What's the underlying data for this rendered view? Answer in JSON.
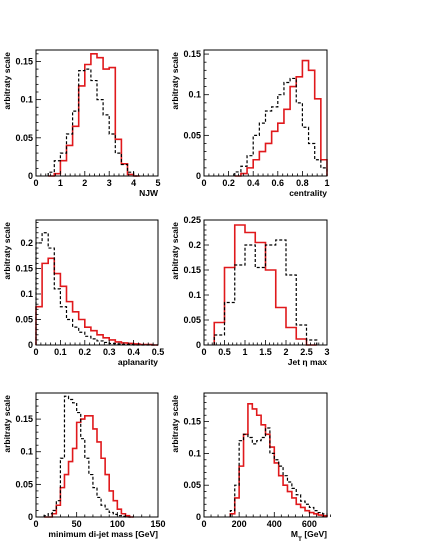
{
  "chart_data": [
    {
      "type": "step",
      "xlabel": "NJW",
      "ylabel": "arbitraty scale",
      "xlim": [
        0,
        5
      ],
      "ylim": [
        0,
        0.165
      ],
      "xticks": [
        0,
        1,
        2,
        3,
        4,
        5
      ],
      "yticks": [
        0,
        0.05,
        0.1,
        0.15
      ],
      "bin_edges": [
        0.5,
        0.75,
        1.0,
        1.25,
        1.5,
        1.75,
        2.0,
        2.25,
        2.5,
        2.75,
        3.0,
        3.25,
        3.5,
        3.75,
        4.0,
        4.25
      ],
      "series": [
        {
          "color": "#e0191c",
          "style": "solid",
          "values": [
            0,
            0.003,
            0.02,
            0.04,
            0.065,
            0.118,
            0.146,
            0.16,
            0.155,
            0.14,
            0.142,
            0.048,
            0.016,
            0.002,
            0
          ]
        },
        {
          "color": "#000000",
          "style": "dashed",
          "values": [
            0.005,
            0.02,
            0.03,
            0.055,
            0.085,
            0.138,
            0.14,
            0.125,
            0.1,
            0.08,
            0.055,
            0.03,
            0.015,
            0.005,
            0
          ]
        }
      ]
    },
    {
      "type": "step",
      "xlabel": "centrality",
      "ylabel": "arbitraty scale",
      "xlim": [
        0,
        1
      ],
      "ylim": [
        0,
        0.155
      ],
      "xticks": [
        0,
        0.2,
        0.4,
        0.6,
        0.8,
        1
      ],
      "yticks": [
        0,
        0.05,
        0.1,
        0.15
      ],
      "bin_edges": [
        0.25,
        0.3,
        0.35,
        0.4,
        0.45,
        0.5,
        0.55,
        0.6,
        0.65,
        0.7,
        0.75,
        0.8,
        0.85,
        0.9,
        0.95,
        1.0
      ],
      "series": [
        {
          "color": "#e0191c",
          "style": "solid",
          "values": [
            0,
            0.003,
            0.01,
            0.02,
            0.03,
            0.04,
            0.055,
            0.065,
            0.082,
            0.11,
            0.122,
            0.142,
            0.13,
            0.095,
            0.02
          ]
        },
        {
          "color": "#000000",
          "style": "dashed",
          "values": [
            0.005,
            0.012,
            0.025,
            0.05,
            0.065,
            0.08,
            0.085,
            0.1,
            0.115,
            0.12,
            0.09,
            0.06,
            0.04,
            0.02,
            0.01
          ]
        }
      ]
    },
    {
      "type": "step",
      "xlabel": "aplanarity",
      "ylabel": "arbitraty scale",
      "xlim": [
        0,
        0.5
      ],
      "ylim": [
        0,
        0.245
      ],
      "xticks": [
        0,
        0.1,
        0.2,
        0.3,
        0.4,
        0.5
      ],
      "yticks": [
        0,
        0.05,
        0.1,
        0.15,
        0.2
      ],
      "bin_edges": [
        0,
        0.025,
        0.05,
        0.075,
        0.1,
        0.125,
        0.15,
        0.175,
        0.2,
        0.225,
        0.25,
        0.275,
        0.3,
        0.325,
        0.35,
        0.375,
        0.4,
        0.425,
        0.45,
        0.475,
        0.5
      ],
      "series": [
        {
          "color": "#e0191c",
          "style": "solid",
          "values": [
            0.075,
            0.16,
            0.17,
            0.14,
            0.115,
            0.085,
            0.065,
            0.05,
            0.035,
            0.028,
            0.02,
            0.014,
            0.01,
            0.006,
            0.004,
            0.003,
            0.002,
            0.001,
            0.001,
            0
          ]
        },
        {
          "color": "#000000",
          "style": "dashed",
          "values": [
            0.2,
            0.22,
            0.19,
            0.11,
            0.075,
            0.05,
            0.035,
            0.025,
            0.017,
            0.012,
            0.008,
            0.005,
            0.003,
            0.002,
            0.001,
            0.001,
            0,
            0,
            0,
            0
          ]
        }
      ]
    },
    {
      "type": "step",
      "xlabel": "Jet η max",
      "ylabel": "arbitraty scale",
      "xlim": [
        0,
        3
      ],
      "ylim": [
        0,
        0.25
      ],
      "xticks": [
        0,
        0.5,
        1,
        1.5,
        2,
        2.5,
        3
      ],
      "yticks": [
        0,
        0.05,
        0.1,
        0.15,
        0.2,
        0.25
      ],
      "bin_edges": [
        0.25,
        0.5,
        0.75,
        1.0,
        1.25,
        1.5,
        1.75,
        2.0,
        2.25,
        2.5,
        2.75
      ],
      "series": [
        {
          "color": "#e0191c",
          "style": "solid",
          "values": [
            0.045,
            0.155,
            0.24,
            0.225,
            0.205,
            0.15,
            0.075,
            0.035,
            0.012,
            0
          ]
        },
        {
          "color": "#000000",
          "style": "dashed",
          "values": [
            0.02,
            0.085,
            0.16,
            0.2,
            0.155,
            0.2,
            0.21,
            0.14,
            0.04,
            0.01
          ]
        }
      ]
    },
    {
      "type": "step",
      "xlabel": "minimum di-jet mass [GeV]",
      "ylabel": "arbitraty scale",
      "xlim": [
        0,
        150
      ],
      "ylim": [
        0,
        0.19
      ],
      "xticks": [
        0,
        50,
        100,
        150
      ],
      "yticks": [
        0,
        0.05,
        0.1,
        0.15
      ],
      "bin_edges": [
        10,
        15,
        20,
        25,
        30,
        35,
        40,
        45,
        50,
        55,
        60,
        65,
        70,
        75,
        80,
        85,
        90,
        95,
        100,
        105,
        110,
        115,
        120
      ],
      "series": [
        {
          "color": "#e0191c",
          "style": "solid",
          "values": [
            0,
            0,
            0.005,
            0.018,
            0.045,
            0.065,
            0.085,
            0.105,
            0.145,
            0.15,
            0.155,
            0.155,
            0.135,
            0.115,
            0.09,
            0.065,
            0.04,
            0.025,
            0.012,
            0.005,
            0.002,
            0
          ]
        },
        {
          "color": "#000000",
          "style": "dashed",
          "values": [
            0.002,
            0.005,
            0.01,
            0.025,
            0.09,
            0.185,
            0.18,
            0.175,
            0.16,
            0.12,
            0.09,
            0.065,
            0.045,
            0.03,
            0.018,
            0.012,
            0.007,
            0.004,
            0.002,
            0.001,
            0,
            0
          ]
        }
      ]
    },
    {
      "type": "step",
      "xlabel": "M",
      "xlabel_sub": "T",
      "xlabel_unit": " [GeV]",
      "ylabel": "arbitraty scale",
      "xlim": [
        0,
        700
      ],
      "ylim": [
        0,
        0.195
      ],
      "xticks": [
        0,
        200,
        400,
        600
      ],
      "yticks": [
        0,
        0.05,
        0.1,
        0.15
      ],
      "bin_edges": [
        150,
        175,
        200,
        225,
        250,
        275,
        300,
        325,
        350,
        375,
        400,
        425,
        450,
        475,
        500,
        525,
        550,
        575,
        600,
        625,
        650,
        675,
        700
      ],
      "series": [
        {
          "color": "#e0191c",
          "style": "solid",
          "values": [
            0.005,
            0.03,
            0.08,
            0.13,
            0.178,
            0.17,
            0.16,
            0.145,
            0.13,
            0.11,
            0.085,
            0.065,
            0.05,
            0.04,
            0.03,
            0.02,
            0.015,
            0.01,
            0.007,
            0.005,
            0.003,
            0.002
          ]
        },
        {
          "color": "#000000",
          "style": "dashed",
          "values": [
            0.01,
            0.05,
            0.12,
            0.13,
            0.125,
            0.115,
            0.12,
            0.125,
            0.14,
            0.1,
            0.09,
            0.08,
            0.065,
            0.055,
            0.045,
            0.035,
            0.025,
            0.02,
            0.015,
            0.01,
            0.007,
            0.005
          ]
        }
      ]
    }
  ]
}
